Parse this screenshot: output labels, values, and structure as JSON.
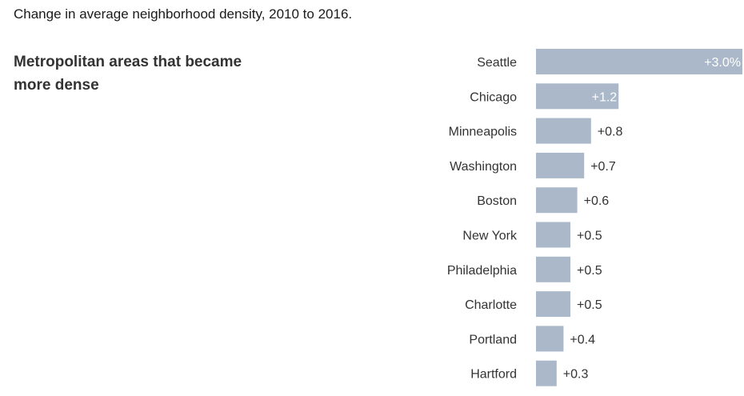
{
  "chart_data": {
    "type": "bar",
    "orientation": "horizontal",
    "title": "Change in average neighborhood density, 2010 to 2016.",
    "subtitle": "Metropolitan areas that became more dense",
    "categories": [
      "Seattle",
      "Chicago",
      "Minneapolis",
      "Washington",
      "Boston",
      "New York",
      "Philadelphia",
      "Charlotte",
      "Portland",
      "Hartford"
    ],
    "values": [
      3.0,
      1.2,
      0.8,
      0.7,
      0.6,
      0.5,
      0.5,
      0.5,
      0.4,
      0.3
    ],
    "value_labels": [
      "+3.0%",
      "+1.2",
      "+0.8",
      "+0.7",
      "+0.6",
      "+0.5",
      "+0.5",
      "+0.5",
      "+0.4",
      "+0.3"
    ],
    "xlim": [
      0,
      3.0
    ],
    "grid": false,
    "bar_color": "#aab8c9",
    "label_inside_color": "#ffffff",
    "label_outside_color": "#333333"
  }
}
